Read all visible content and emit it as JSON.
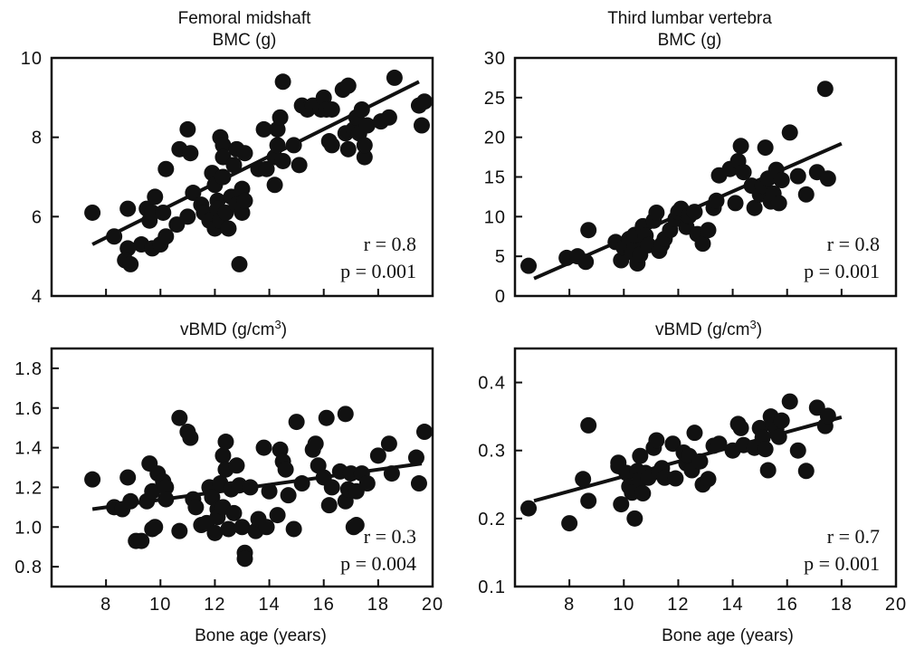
{
  "chart_data": [
    {
      "type": "scatter",
      "title": "Femoral midshaft",
      "subtitle": "BMC (g)",
      "xlabel": "",
      "xlim": [
        6,
        20
      ],
      "ylim": [
        4,
        10
      ],
      "xticks": [
        8,
        10,
        12,
        14,
        16,
        18,
        20
      ],
      "xtick_labels": [],
      "yticks": [
        4,
        6,
        8,
        10
      ],
      "ytick_labels": [
        "4",
        "6",
        "8",
        "10"
      ],
      "r_text": "r = 0.8",
      "p_text": "p = 0.001",
      "fit": [
        [
          7.5,
          5.3
        ],
        [
          19.5,
          9.4
        ]
      ],
      "points": [
        [
          7.5,
          6.1
        ],
        [
          8.3,
          5.5
        ],
        [
          8.8,
          5.2
        ],
        [
          8.7,
          4.9
        ],
        [
          8.9,
          4.8
        ],
        [
          8.8,
          6.2
        ],
        [
          9.3,
          5.3
        ],
        [
          9.6,
          5.9
        ],
        [
          9.5,
          6.2
        ],
        [
          9.7,
          6.1
        ],
        [
          9.8,
          6.5
        ],
        [
          9.7,
          5.2
        ],
        [
          10,
          5.3
        ],
        [
          10.1,
          6.1
        ],
        [
          10.2,
          5.5
        ],
        [
          10.2,
          7.2
        ],
        [
          10.6,
          5.8
        ],
        [
          10.7,
          7.7
        ],
        [
          11,
          6
        ],
        [
          11,
          8.2
        ],
        [
          11.1,
          7.6
        ],
        [
          11.2,
          6.6
        ],
        [
          11.5,
          6.3
        ],
        [
          11.6,
          6.1
        ],
        [
          11.8,
          5.9
        ],
        [
          11.9,
          7.1
        ],
        [
          12,
          6.8
        ],
        [
          12,
          5.7
        ],
        [
          12.1,
          6.4
        ],
        [
          12.1,
          6.2
        ],
        [
          12.2,
          5.9
        ],
        [
          12.2,
          8
        ],
        [
          12.3,
          7.8
        ],
        [
          12.3,
          7.5
        ],
        [
          12.3,
          7
        ],
        [
          12.4,
          6.1
        ],
        [
          12.5,
          5.7
        ],
        [
          12.6,
          6.5
        ],
        [
          12.7,
          7.3
        ],
        [
          12.8,
          6.3
        ],
        [
          12.8,
          7.7
        ],
        [
          12.9,
          4.8
        ],
        [
          13,
          6.1
        ],
        [
          13,
          6.7
        ],
        [
          13.1,
          7.6
        ],
        [
          13.1,
          6.4
        ],
        [
          13.6,
          7.2
        ],
        [
          13.8,
          8.2
        ],
        [
          13.9,
          7.2
        ],
        [
          14.2,
          6.8
        ],
        [
          14.2,
          7.5
        ],
        [
          14.3,
          7.8
        ],
        [
          14.3,
          8.2
        ],
        [
          14.4,
          8.5
        ],
        [
          14.5,
          9.4
        ],
        [
          14.5,
          7.4
        ],
        [
          14.9,
          7.8
        ],
        [
          15.1,
          7.3
        ],
        [
          15.2,
          8.8
        ],
        [
          15.4,
          8.7
        ],
        [
          15.6,
          8.8
        ],
        [
          15.9,
          8.7
        ],
        [
          16,
          9
        ],
        [
          16.1,
          8.7
        ],
        [
          16.2,
          7.9
        ],
        [
          16.3,
          8.7
        ],
        [
          16.3,
          7.8
        ],
        [
          16.7,
          9.2
        ],
        [
          16.8,
          8.1
        ],
        [
          16.9,
          9.3
        ],
        [
          16.9,
          7.7
        ],
        [
          17.1,
          8.2
        ],
        [
          17.2,
          8.5
        ],
        [
          17.3,
          8.1
        ],
        [
          17.4,
          8.7
        ],
        [
          17.5,
          7.5
        ],
        [
          17.5,
          7.8
        ],
        [
          17.6,
          8.3
        ],
        [
          18.1,
          8.4
        ],
        [
          18.4,
          8.5
        ],
        [
          18.6,
          9.5
        ],
        [
          19.5,
          8.8
        ],
        [
          19.6,
          8.3
        ],
        [
          19.7,
          8.9
        ]
      ]
    },
    {
      "type": "scatter",
      "title": "Third lumbar vertebra",
      "subtitle": "BMC (g)",
      "xlabel": "",
      "xlim": [
        6,
        20
      ],
      "ylim": [
        0,
        30
      ],
      "xticks": [
        8,
        10,
        12,
        14,
        16,
        18,
        20
      ],
      "xtick_labels": [],
      "yticks": [
        0,
        5,
        10,
        15,
        20,
        25,
        30
      ],
      "ytick_labels": [
        "0",
        "5",
        "10",
        "15",
        "20",
        "25",
        "30"
      ],
      "r_text": "r = 0.8",
      "p_text": "p = 0.001",
      "fit": [
        [
          6.7,
          2.2
        ],
        [
          18,
          19.2
        ]
      ],
      "points": [
        [
          6.5,
          3.8
        ],
        [
          7.9,
          4.8
        ],
        [
          8.3,
          5
        ],
        [
          8.6,
          4.3
        ],
        [
          8.7,
          8.3
        ],
        [
          9.7,
          6.8
        ],
        [
          9.9,
          4.5
        ],
        [
          10,
          6.1
        ],
        [
          10.2,
          7.2
        ],
        [
          10.3,
          5.5
        ],
        [
          10.4,
          6.4
        ],
        [
          10.4,
          7.7
        ],
        [
          10.5,
          4.1
        ],
        [
          10.6,
          5.2
        ],
        [
          10.7,
          8.8
        ],
        [
          10.8,
          7.6
        ],
        [
          10.9,
          6.4
        ],
        [
          11.1,
          9.5
        ],
        [
          11.2,
          10.5
        ],
        [
          11.3,
          5.7
        ],
        [
          11.4,
          6.5
        ],
        [
          11.5,
          7.2
        ],
        [
          11.7,
          8.3
        ],
        [
          11.9,
          9.7
        ],
        [
          12,
          10.6
        ],
        [
          12.1,
          11
        ],
        [
          12.3,
          8.7
        ],
        [
          12.4,
          10.1
        ],
        [
          12.6,
          10.6
        ],
        [
          12.7,
          7.8
        ],
        [
          12.9,
          6.6
        ],
        [
          13.1,
          8.3
        ],
        [
          13.3,
          11.1
        ],
        [
          13.4,
          12
        ],
        [
          13.5,
          15.2
        ],
        [
          13.9,
          16
        ],
        [
          14.1,
          11.7
        ],
        [
          14.2,
          17
        ],
        [
          14.3,
          18.9
        ],
        [
          14.4,
          15.6
        ],
        [
          14.7,
          13.9
        ],
        [
          14.8,
          11.1
        ],
        [
          15,
          12.8
        ],
        [
          15.1,
          13.9
        ],
        [
          15.2,
          18.7
        ],
        [
          15.3,
          14.8
        ],
        [
          15.4,
          11.9
        ],
        [
          15.5,
          12.9
        ],
        [
          15.6,
          15.9
        ],
        [
          15.7,
          11.7
        ],
        [
          15.8,
          14.6
        ],
        [
          16.1,
          20.6
        ],
        [
          16.4,
          15.1
        ],
        [
          16.7,
          12.8
        ],
        [
          17.1,
          15.6
        ],
        [
          17.4,
          26.1
        ],
        [
          17.5,
          14.8
        ]
      ]
    },
    {
      "type": "scatter",
      "title": "vBMD (g/cm",
      "title_sup": "3",
      "title_close": ")",
      "xlabel": "Bone age (years)",
      "xlim": [
        6,
        20
      ],
      "ylim": [
        0.7,
        1.9
      ],
      "xticks": [
        8,
        10,
        12,
        14,
        16,
        18,
        20
      ],
      "xtick_labels": [
        "8",
        "10",
        "12",
        "14",
        "16",
        "18",
        "20"
      ],
      "yticks": [
        0.8,
        1.0,
        1.2,
        1.4,
        1.6,
        1.8
      ],
      "ytick_labels": [
        "0.8",
        "1.0",
        "1.2",
        "1.4",
        "1.6",
        "1.8"
      ],
      "r_text": "r = 0.3",
      "p_text": "p = 0.004",
      "fit": [
        [
          7.5,
          1.09
        ],
        [
          19.6,
          1.32
        ]
      ],
      "points": [
        [
          7.5,
          1.24
        ],
        [
          8.3,
          1.1
        ],
        [
          8.6,
          1.09
        ],
        [
          8.8,
          1.25
        ],
        [
          8.9,
          1.13
        ],
        [
          9.1,
          0.93
        ],
        [
          9.3,
          0.93
        ],
        [
          9.5,
          1.13
        ],
        [
          9.6,
          1.32
        ],
        [
          9.7,
          1.18
        ],
        [
          9.7,
          0.99
        ],
        [
          9.8,
          1.0
        ],
        [
          9.9,
          1.27
        ],
        [
          10.1,
          1.23
        ],
        [
          10.2,
          1.2
        ],
        [
          10.2,
          1.14
        ],
        [
          10.7,
          0.98
        ],
        [
          10.7,
          1.55
        ],
        [
          11,
          1.48
        ],
        [
          11.1,
          1.45
        ],
        [
          11.2,
          1.14
        ],
        [
          11.3,
          1.1
        ],
        [
          11.5,
          1.01
        ],
        [
          11.7,
          1.02
        ],
        [
          11.8,
          1.2
        ],
        [
          11.9,
          1.15
        ],
        [
          12,
          0.97
        ],
        [
          12.1,
          1.09
        ],
        [
          12.1,
          1.05
        ],
        [
          12.2,
          1.22
        ],
        [
          12.3,
          1.1
        ],
        [
          12.3,
          1.36
        ],
        [
          12.4,
          1.43
        ],
        [
          12.4,
          1.29
        ],
        [
          12.5,
          0.99
        ],
        [
          12.6,
          1.19
        ],
        [
          12.7,
          1.07
        ],
        [
          12.8,
          1.31
        ],
        [
          12.9,
          1.21
        ],
        [
          13,
          1.0
        ],
        [
          13.1,
          0.87
        ],
        [
          13.1,
          0.84
        ],
        [
          13.3,
          1.2
        ],
        [
          13.5,
          0.98
        ],
        [
          13.6,
          1.04
        ],
        [
          13.8,
          1.4
        ],
        [
          13.9,
          1.0
        ],
        [
          14,
          1.18
        ],
        [
          14.3,
          1.06
        ],
        [
          14.4,
          1.39
        ],
        [
          14.5,
          1.33
        ],
        [
          14.6,
          1.29
        ],
        [
          14.7,
          1.16
        ],
        [
          14.9,
          0.99
        ],
        [
          15,
          1.53
        ],
        [
          15.2,
          1.22
        ],
        [
          15.6,
          1.39
        ],
        [
          15.7,
          1.42
        ],
        [
          15.8,
          1.31
        ],
        [
          16,
          1.25
        ],
        [
          16.1,
          1.55
        ],
        [
          16.2,
          1.11
        ],
        [
          16.3,
          1.2
        ],
        [
          16.6,
          1.28
        ],
        [
          16.8,
          1.57
        ],
        [
          16.8,
          1.13
        ],
        [
          16.9,
          1.19
        ],
        [
          17,
          1.27
        ],
        [
          17.1,
          1.0
        ],
        [
          17.2,
          1.01
        ],
        [
          17.2,
          1.18
        ],
        [
          17.4,
          1.27
        ],
        [
          17.6,
          1.22
        ],
        [
          18,
          1.36
        ],
        [
          18.4,
          1.42
        ],
        [
          18.5,
          1.27
        ],
        [
          19.4,
          1.35
        ],
        [
          19.5,
          1.22
        ],
        [
          19.7,
          1.48
        ]
      ]
    },
    {
      "type": "scatter",
      "title": "vBMD (g/cm",
      "title_sup": "3",
      "title_close": ")",
      "xlabel": "Bone age (years)",
      "xlim": [
        6,
        20
      ],
      "ylim": [
        0.1,
        0.45
      ],
      "xticks": [
        8,
        10,
        12,
        14,
        16,
        18,
        20
      ],
      "xtick_labels": [
        "8",
        "10",
        "12",
        "14",
        "16",
        "18",
        "20"
      ],
      "yticks": [
        0.1,
        0.2,
        0.3,
        0.4
      ],
      "ytick_labels": [
        "0.1",
        "0.2",
        "0.3",
        "0.4"
      ],
      "r_text": "r = 0.7",
      "p_text": "p = 0.001",
      "fit": [
        [
          6.7,
          0.226
        ],
        [
          18,
          0.349
        ]
      ],
      "points": [
        [
          6.5,
          0.215
        ],
        [
          8,
          0.193
        ],
        [
          8.5,
          0.258
        ],
        [
          8.7,
          0.337
        ],
        [
          8.7,
          0.226
        ],
        [
          9.8,
          0.282
        ],
        [
          9.8,
          0.277
        ],
        [
          9.9,
          0.221
        ],
        [
          10.1,
          0.267
        ],
        [
          10.2,
          0.247
        ],
        [
          10.3,
          0.238
        ],
        [
          10.4,
          0.2
        ],
        [
          10.5,
          0.27
        ],
        [
          10.6,
          0.292
        ],
        [
          10.6,
          0.257
        ],
        [
          10.7,
          0.237
        ],
        [
          10.8,
          0.267
        ],
        [
          10.9,
          0.26
        ],
        [
          11.1,
          0.304
        ],
        [
          11.2,
          0.315
        ],
        [
          11.3,
          0.268
        ],
        [
          11.4,
          0.274
        ],
        [
          11.5,
          0.26
        ],
        [
          11.8,
          0.31
        ],
        [
          11.9,
          0.259
        ],
        [
          12.2,
          0.297
        ],
        [
          12.3,
          0.281
        ],
        [
          12.4,
          0.292
        ],
        [
          12.5,
          0.271
        ],
        [
          12.6,
          0.326
        ],
        [
          12.8,
          0.284
        ],
        [
          12.9,
          0.25
        ],
        [
          13.1,
          0.258
        ],
        [
          13.3,
          0.307
        ],
        [
          13.5,
          0.31
        ],
        [
          14,
          0.3
        ],
        [
          14.2,
          0.339
        ],
        [
          14.3,
          0.333
        ],
        [
          14.4,
          0.308
        ],
        [
          14.8,
          0.304
        ],
        [
          15,
          0.333
        ],
        [
          15.1,
          0.319
        ],
        [
          15.2,
          0.302
        ],
        [
          15.3,
          0.271
        ],
        [
          15.4,
          0.35
        ],
        [
          15.5,
          0.337
        ],
        [
          15.6,
          0.331
        ],
        [
          15.7,
          0.32
        ],
        [
          15.8,
          0.344
        ],
        [
          16.1,
          0.372
        ],
        [
          16.4,
          0.3
        ],
        [
          16.7,
          0.27
        ],
        [
          17.1,
          0.363
        ],
        [
          17.4,
          0.336
        ],
        [
          17.5,
          0.351
        ]
      ]
    }
  ]
}
